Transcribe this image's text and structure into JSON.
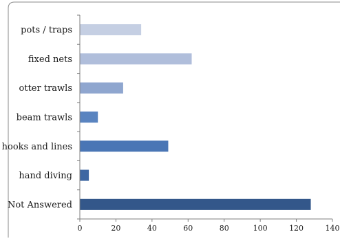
{
  "chart_data": {
    "type": "bar",
    "orientation": "horizontal",
    "categories": [
      "pots / traps",
      "fixed nets",
      "otter trawls",
      "beam trawls",
      "hooks and lines",
      "hand diving",
      "Not Answered"
    ],
    "values": [
      34,
      62,
      24,
      10,
      49,
      5,
      128
    ],
    "bar_colors": [
      "#c5cfe3",
      "#b0bedb",
      "#8fa6cf",
      "#5a84c0",
      "#4a76b5",
      "#3e67a2",
      "#33578a"
    ],
    "xlim": [
      0,
      140
    ],
    "x_ticks": [
      0,
      20,
      40,
      60,
      80,
      100,
      120,
      140
    ],
    "x_tick_labels": [
      "0",
      "20",
      "40",
      "60",
      "80",
      "100",
      "120",
      "140"
    ],
    "title": "",
    "xlabel": "",
    "ylabel": "",
    "grid": false,
    "legend": "none"
  }
}
